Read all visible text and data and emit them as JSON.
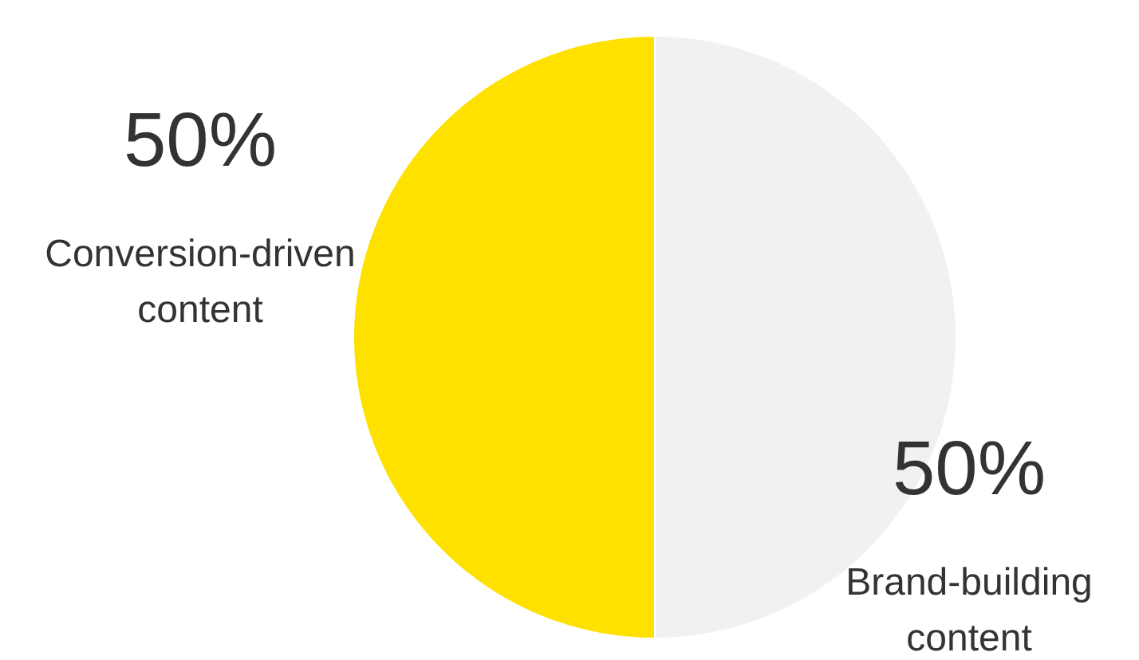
{
  "chart_data": {
    "type": "pie",
    "categories": [
      "Conversion-driven content",
      "Brand-building content"
    ],
    "values": [
      50,
      50
    ],
    "colors": [
      "#ffe100",
      "#f1f1f1"
    ],
    "value_labels": [
      "50%",
      "50%"
    ]
  }
}
